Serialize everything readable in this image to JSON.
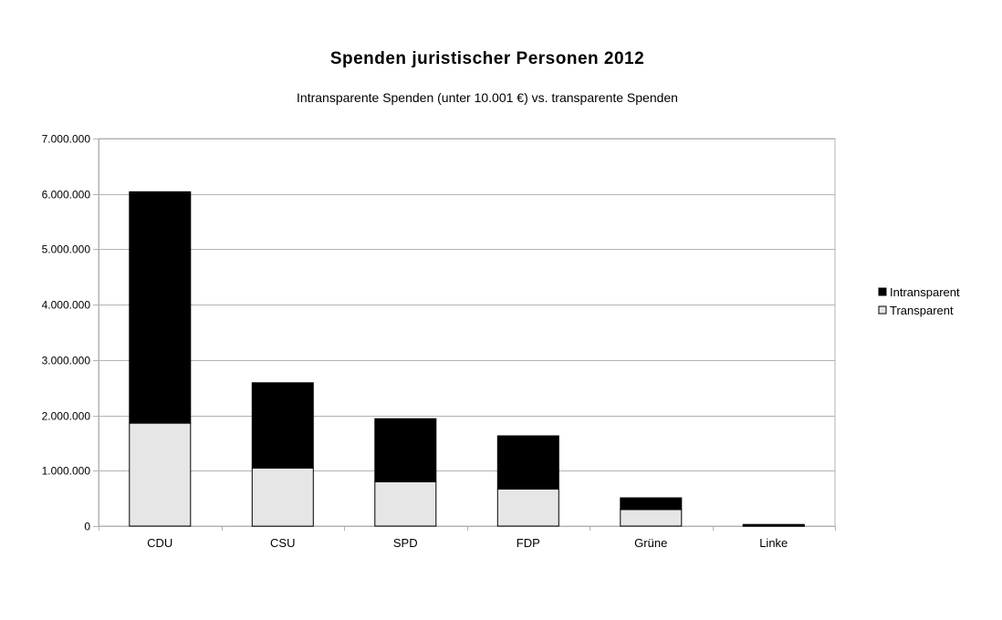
{
  "chart_data": {
    "type": "bar",
    "stacked": true,
    "title": "Spenden juristischer Personen 2012",
    "subtitle": "Intransparente Spenden (unter 10.001 €) vs. transparente Spenden",
    "xlabel": "",
    "ylabel": "",
    "ylim": [
      0,
      7000000
    ],
    "yticks": [
      0,
      1000000,
      2000000,
      3000000,
      4000000,
      5000000,
      6000000,
      7000000
    ],
    "ytick_labels": [
      "0",
      "1.000.000",
      "2.000.000",
      "3.000.000",
      "4.000.000",
      "5.000.000",
      "6.000.000",
      "7.000.000"
    ],
    "categories": [
      "CDU",
      "CSU",
      "SPD",
      "FDP",
      "Grüne",
      "Linke"
    ],
    "series": [
      {
        "name": "Transparent",
        "color": "#e6e6e6",
        "values": [
          1860000,
          1050000,
          800000,
          670000,
          300000,
          5000
        ]
      },
      {
        "name": "Intransparent",
        "color": "#000000",
        "values": [
          4180000,
          1540000,
          1140000,
          960000,
          210000,
          25000
        ]
      }
    ],
    "legend": {
      "position": "right",
      "entries": [
        "Intransparent",
        "Transparent"
      ]
    },
    "grid": true
  }
}
